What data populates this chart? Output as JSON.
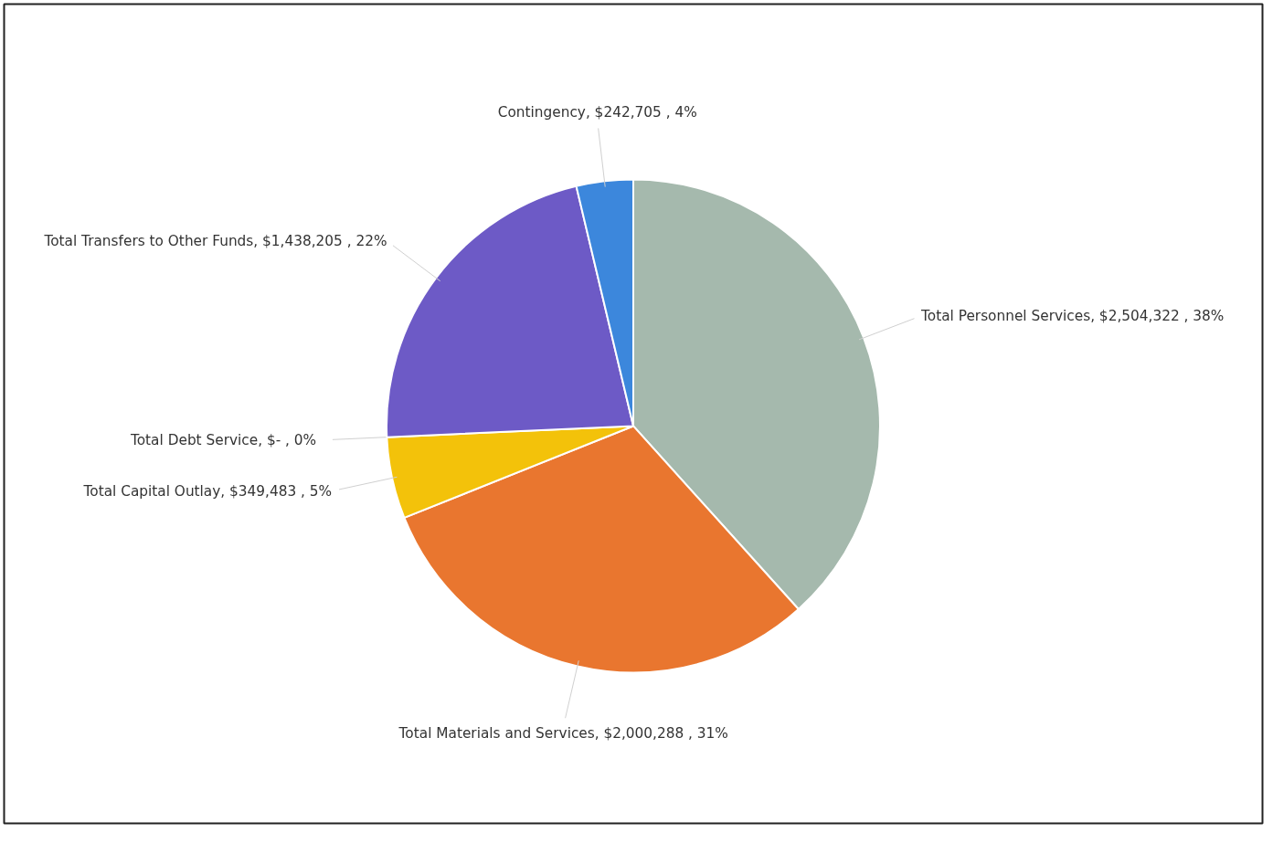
{
  "chart_data": {
    "type": "pie",
    "categories": [
      "Total Personnel Services",
      "Total Materials and Services",
      "Total Capital Outlay",
      "Total Debt Service",
      "Total Transfers to Other Funds",
      "Contingency"
    ],
    "values": [
      2504322,
      2000288,
      349483,
      0,
      1438205,
      242705
    ],
    "value_labels": [
      "$2,504,322 , 38%",
      "$2,000,288 , 31%",
      "$349,483 , 5%",
      "$-   , 0%",
      "$1,438,205 , 22%",
      "$242,705 , 4%"
    ],
    "colors": [
      "#a5b9ad",
      "#e9762f",
      "#f3c20a",
      "#8c8c8c",
      "#6d5ac6",
      "#3c87dc"
    ]
  }
}
